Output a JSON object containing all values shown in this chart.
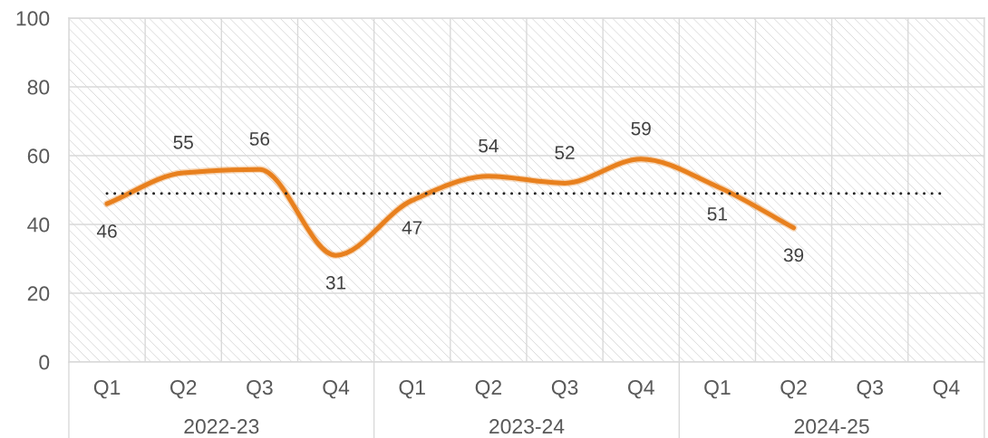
{
  "chart_data": {
    "type": "line",
    "categories": [
      "Q1",
      "Q2",
      "Q3",
      "Q4",
      "Q1",
      "Q2",
      "Q3",
      "Q4",
      "Q1",
      "Q2",
      "Q3",
      "Q4"
    ],
    "series": [
      {
        "color": "#e8801e",
        "values": [
          46,
          55,
          56,
          31,
          47,
          54,
          52,
          59,
          51,
          39,
          null,
          null
        ]
      }
    ],
    "line_style": "solid",
    "ylim": [
      0,
      100
    ],
    "yticks": [
      0,
      20,
      40,
      60,
      80,
      100
    ],
    "grid": true,
    "data_labels": true,
    "ref_lines": [
      {
        "axis": "y",
        "value": 49,
        "color": "#262626",
        "line_style": "dotted"
      }
    ],
    "annotations": [
      "2022-23",
      "2023-24",
      "2024-25"
    ]
  }
}
